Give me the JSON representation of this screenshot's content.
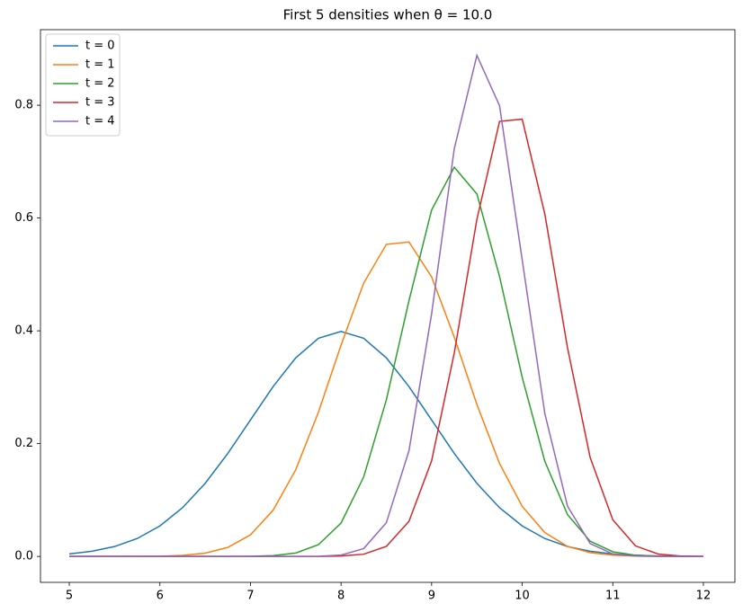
{
  "chart_data": {
    "type": "line",
    "title": "First 5 densities when θ = 10.0",
    "x": [
      5,
      5.25,
      5.5,
      5.75,
      6,
      6.25,
      6.5,
      6.75,
      7,
      7.25,
      7.5,
      7.75,
      8,
      8.25,
      8.5,
      8.75,
      9,
      9.25,
      9.5,
      9.75,
      10,
      10.25,
      10.5,
      10.75,
      11,
      11.25,
      11.5,
      11.75,
      12
    ],
    "series": [
      {
        "name": "t = 0",
        "color": "#1f77b4",
        "values": [
          0.0044,
          0.0091,
          0.0175,
          0.0317,
          0.054,
          0.0863,
          0.1295,
          0.1826,
          0.242,
          0.3011,
          0.3521,
          0.3867,
          0.3989,
          0.3867,
          0.3521,
          0.3011,
          0.242,
          0.1826,
          0.1295,
          0.0863,
          0.054,
          0.0317,
          0.0175,
          0.0091,
          0.0044,
          0.002,
          0.0009,
          0.0004,
          0.0001
        ]
      },
      {
        "name": "t = 1",
        "color": "#ff7f0e",
        "values": [
          0,
          0,
          0,
          0.0001,
          0.0005,
          0.0019,
          0.0058,
          0.0159,
          0.0383,
          0.0818,
          0.1537,
          0.2555,
          0.3746,
          0.4846,
          0.5533,
          0.5575,
          0.4956,
          0.3889,
          0.2693,
          0.1646,
          0.0887,
          0.0422,
          0.0177,
          0.0066,
          0.0021,
          0.0006,
          0.0002,
          0,
          0
        ]
      },
      {
        "name": "t = 2",
        "color": "#2ca02c",
        "values": [
          0,
          0,
          0,
          0,
          0,
          0,
          0,
          0,
          0.0003,
          0.0014,
          0.006,
          0.0207,
          0.0591,
          0.1408,
          0.2774,
          0.4535,
          0.6143,
          0.6901,
          0.6426,
          0.4962,
          0.3174,
          0.1685,
          0.0741,
          0.027,
          0.0082,
          0.0021,
          0.0004,
          0.0001,
          0
        ]
      },
      {
        "name": "t = 3",
        "color": "#d62728",
        "values": [
          0,
          0,
          0,
          0,
          0,
          0,
          0,
          0,
          0,
          0,
          0,
          0.0001,
          0.0007,
          0.0039,
          0.0177,
          0.0621,
          0.1695,
          0.3607,
          0.5978,
          0.7714,
          0.7753,
          0.6068,
          0.3699,
          0.1755,
          0.0649,
          0.0187,
          0.0042,
          0.0007,
          0.0001
        ]
      },
      {
        "name": "t = 4",
        "color": "#9467bd",
        "values": [
          0,
          0,
          0,
          0,
          0,
          0,
          0,
          0,
          0,
          0,
          0,
          0.0003,
          0.0024,
          0.0139,
          0.0597,
          0.1874,
          0.4303,
          0.723,
          0.8884,
          0.799,
          0.5256,
          0.253,
          0.0891,
          0.0229,
          0.0043,
          0.0006,
          0.0001,
          0,
          0
        ]
      }
    ],
    "xlim": [
      4.682,
      12.348
    ],
    "ylim": [
      -0.046,
      0.934
    ],
    "xticks": [
      5,
      6,
      7,
      8,
      9,
      10,
      11,
      12
    ],
    "yticks": [
      {
        "value": 0,
        "label": "0.0"
      },
      0.2,
      0.4,
      0.6,
      0.8
    ],
    "grid": false,
    "legend": "upper left"
  }
}
